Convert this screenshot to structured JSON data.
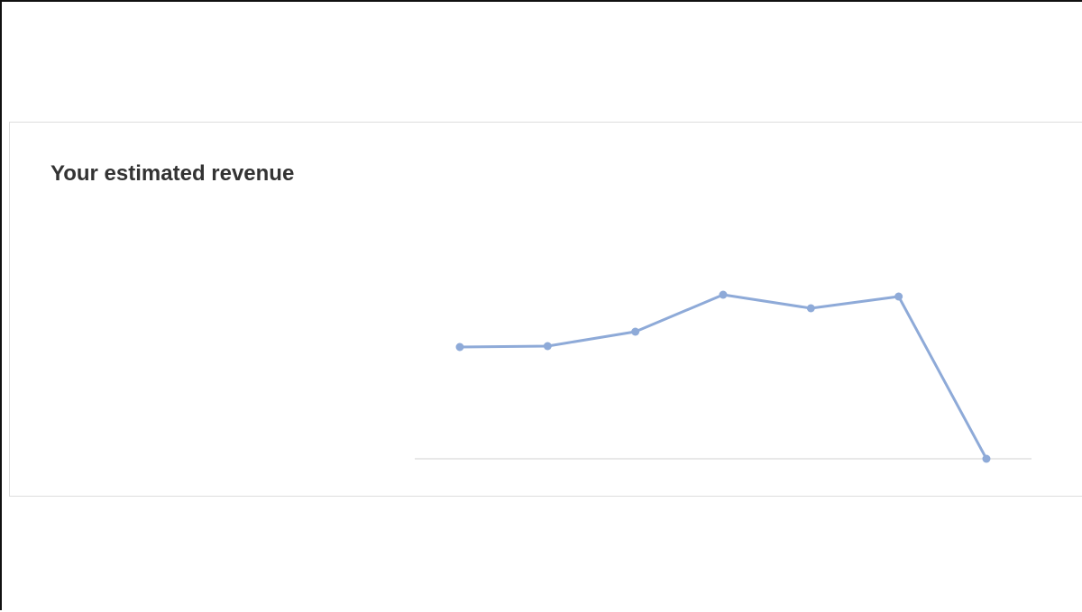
{
  "chart_data": {
    "type": "line",
    "title": "Your estimated revenue",
    "categories": [
      null,
      null,
      null,
      null,
      null,
      null,
      null
    ],
    "series": [
      {
        "color": "#8eaad8",
        "values": [
          124,
          125,
          141,
          182,
          167,
          180,
          0
        ]
      }
    ],
    "ylim": [
      0,
      200
    ]
  }
}
